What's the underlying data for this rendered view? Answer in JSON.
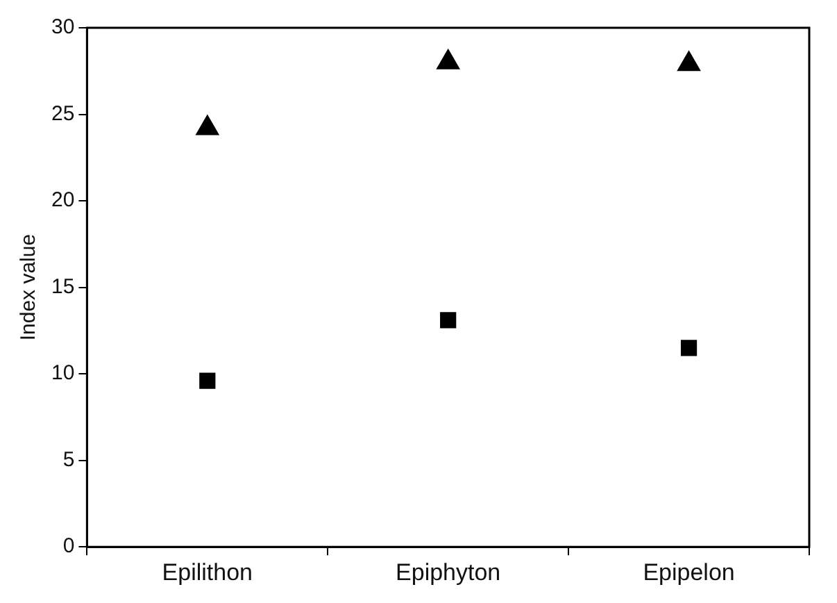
{
  "chart_data": {
    "type": "scatter",
    "ylabel": "Index value",
    "categories": [
      "Epilithon",
      "Epiphyton",
      "Epipelon"
    ],
    "series": [
      {
        "color": "#000000",
        "marker": "triangle",
        "values": [
          24.2,
          28.0,
          27.9
        ]
      },
      {
        "color": "#000000",
        "marker": "square",
        "values": [
          9.6,
          13.1,
          11.5
        ]
      }
    ],
    "ylim": [
      0,
      30
    ],
    "yticks": [
      0,
      5,
      10,
      15,
      20,
      25,
      30
    ],
    "grid": false,
    "legend": false
  }
}
